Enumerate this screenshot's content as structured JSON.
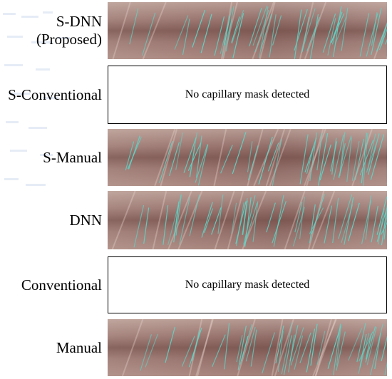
{
  "rows": [
    {
      "label": "S-DNN",
      "sublabel": "(Proposed)",
      "type": "image"
    },
    {
      "label": "S-Conventional",
      "type": "empty",
      "message": "No capillary mask detected"
    },
    {
      "label": "S-Manual",
      "type": "image"
    },
    {
      "label": "DNN",
      "type": "image"
    },
    {
      "label": "Conventional",
      "type": "empty",
      "message": "No capillary mask detected"
    },
    {
      "label": "Manual",
      "type": "image"
    }
  ],
  "colors": {
    "capillary_line": "#5fd6c8",
    "border": "#000000"
  }
}
